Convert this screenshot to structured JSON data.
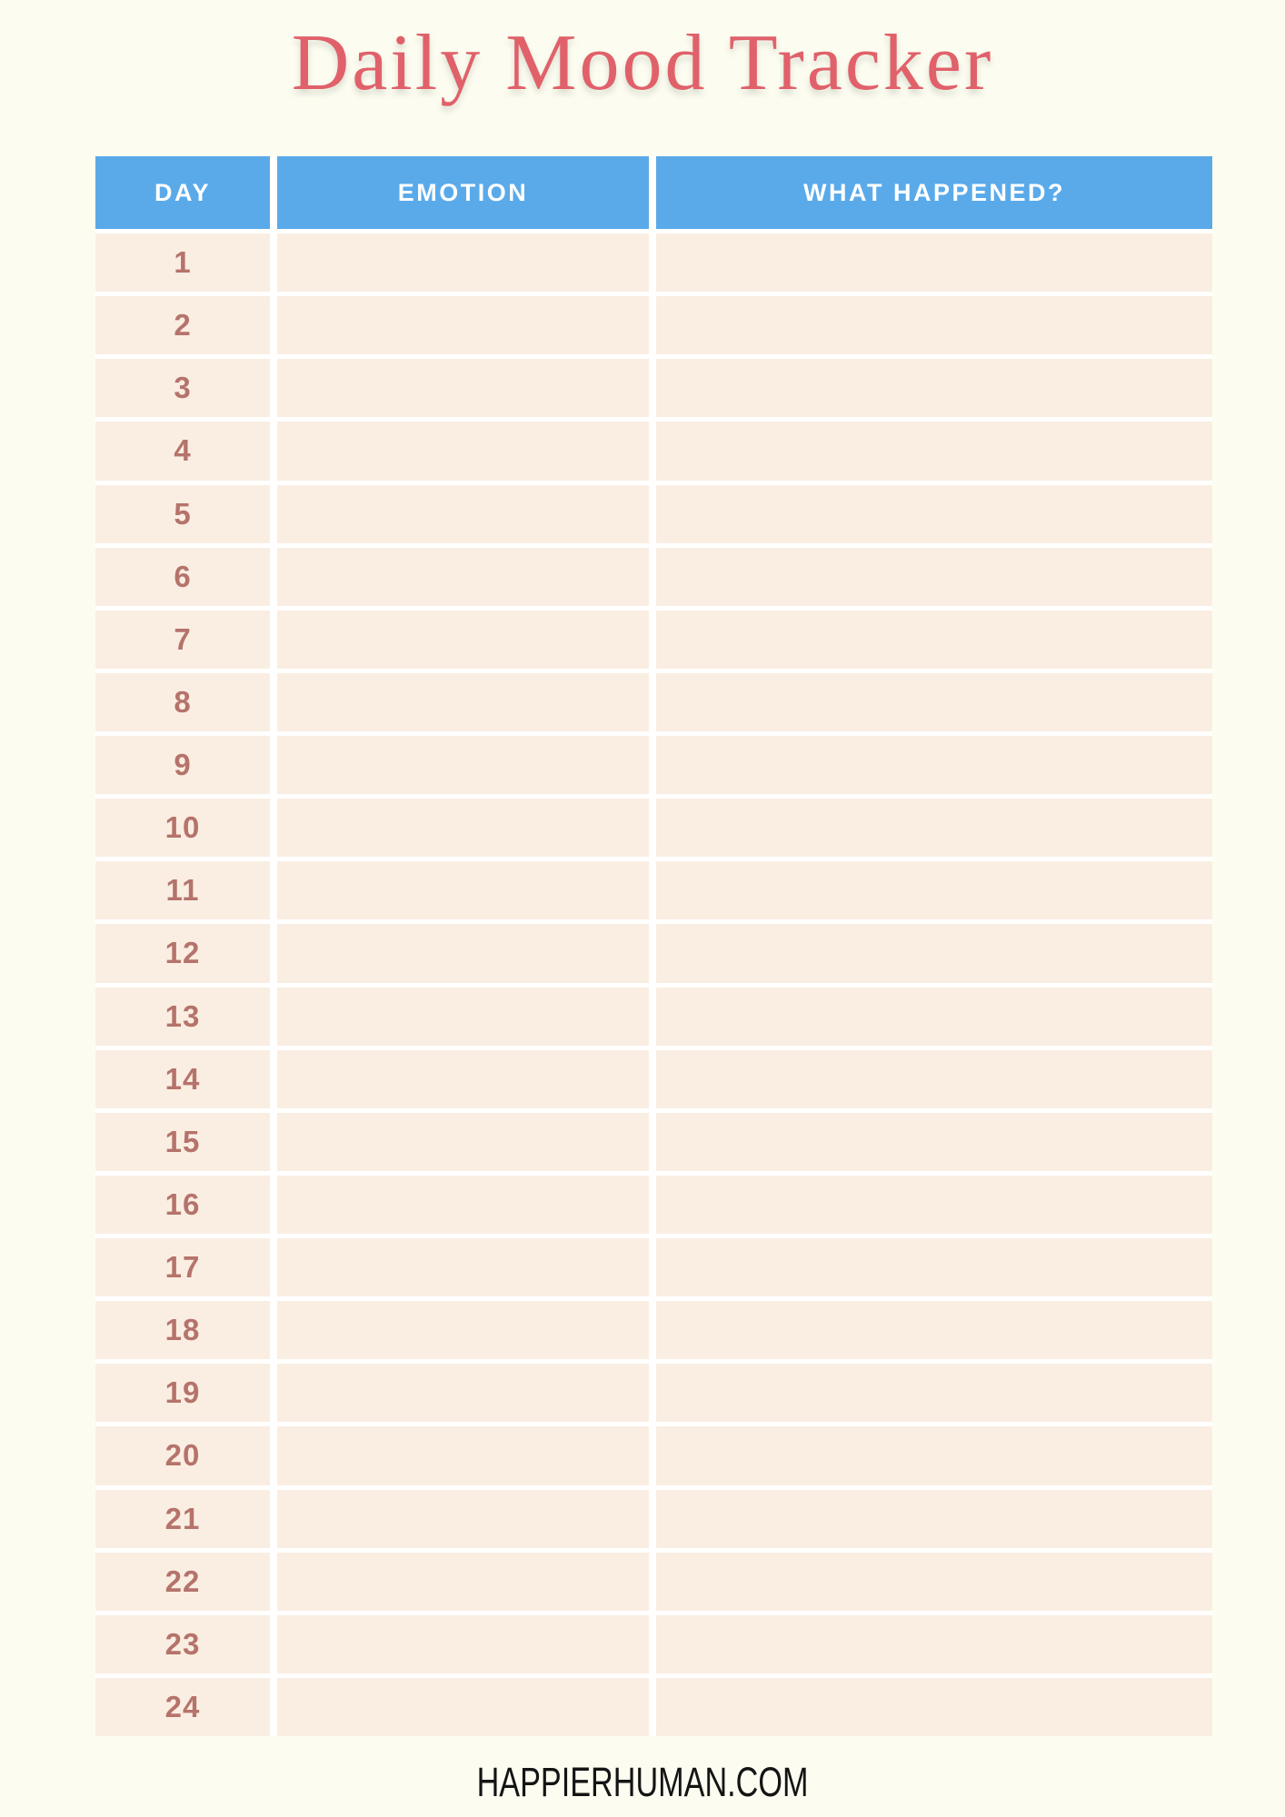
{
  "page": {
    "title": "Daily Mood Tracker",
    "footer": "HAPPIERHUMAN.COM"
  },
  "table": {
    "headers": [
      "DAY",
      "EMOTION",
      "WHAT HAPPENED?"
    ],
    "rows": [
      {
        "day": "1",
        "emotion": "",
        "what_happened": ""
      },
      {
        "day": "2",
        "emotion": "",
        "what_happened": ""
      },
      {
        "day": "3",
        "emotion": "",
        "what_happened": ""
      },
      {
        "day": "4",
        "emotion": "",
        "what_happened": ""
      },
      {
        "day": "5",
        "emotion": "",
        "what_happened": ""
      },
      {
        "day": "6",
        "emotion": "",
        "what_happened": ""
      },
      {
        "day": "7",
        "emotion": "",
        "what_happened": ""
      },
      {
        "day": "8",
        "emotion": "",
        "what_happened": ""
      },
      {
        "day": "9",
        "emotion": "",
        "what_happened": ""
      },
      {
        "day": "10",
        "emotion": "",
        "what_happened": ""
      },
      {
        "day": "11",
        "emotion": "",
        "what_happened": ""
      },
      {
        "day": "12",
        "emotion": "",
        "what_happened": ""
      },
      {
        "day": "13",
        "emotion": "",
        "what_happened": ""
      },
      {
        "day": "14",
        "emotion": "",
        "what_happened": ""
      },
      {
        "day": "15",
        "emotion": "",
        "what_happened": ""
      },
      {
        "day": "16",
        "emotion": "",
        "what_happened": ""
      },
      {
        "day": "17",
        "emotion": "",
        "what_happened": ""
      },
      {
        "day": "18",
        "emotion": "",
        "what_happened": ""
      },
      {
        "day": "19",
        "emotion": "",
        "what_happened": ""
      },
      {
        "day": "20",
        "emotion": "",
        "what_happened": ""
      },
      {
        "day": "21",
        "emotion": "",
        "what_happened": ""
      },
      {
        "day": "22",
        "emotion": "",
        "what_happened": ""
      },
      {
        "day": "23",
        "emotion": "",
        "what_happened": ""
      },
      {
        "day": "24",
        "emotion": "",
        "what_happened": ""
      }
    ]
  },
  "colors": {
    "page-bg": "#fcfdf0",
    "grid-line": "#ffffff",
    "header-blue": "#5aaaea",
    "header-text": "#ffffff",
    "row-bg": "#faeee2",
    "day-number": "#b5736b",
    "title-red": "#e0616a",
    "footer-text": "#141414"
  }
}
